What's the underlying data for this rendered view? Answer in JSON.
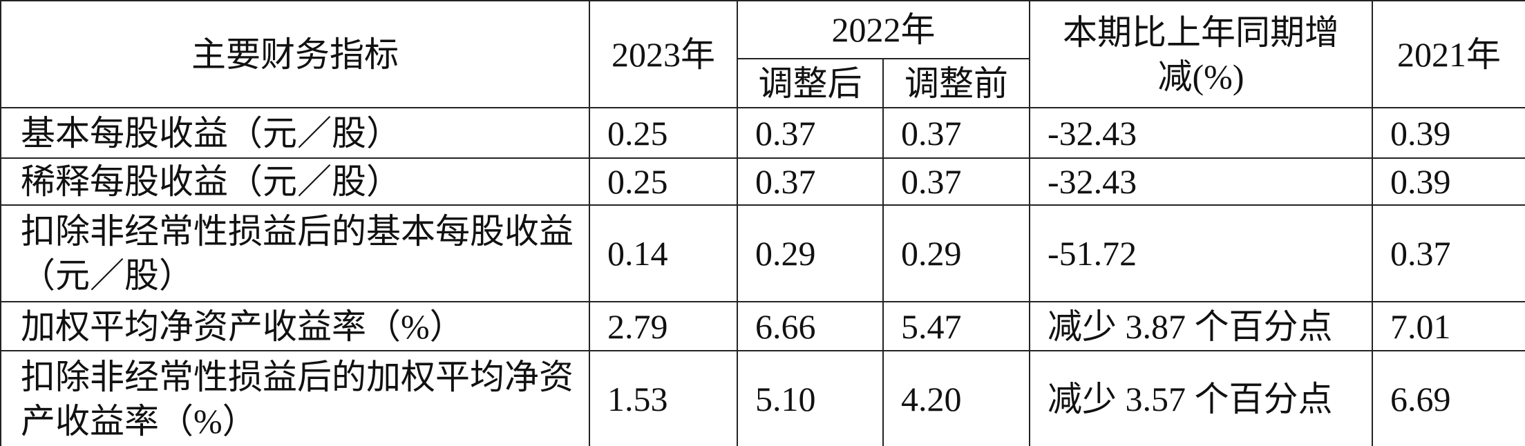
{
  "table": {
    "header": {
      "indicator": "主要财务指标",
      "y2023": "2023年",
      "y2022": "2022年",
      "adjusted": "调整后",
      "before_adjust": "调整前",
      "change": "本期比上年同期增减(%)",
      "y2021": "2021年"
    },
    "rows": [
      [
        "基本每股收益（元／股）",
        "0.25",
        "0.37",
        "0.37",
        "-32.43",
        "0.39"
      ],
      [
        "稀释每股收益（元／股）",
        "0.25",
        "0.37",
        "0.37",
        "-32.43",
        "0.39"
      ],
      [
        "扣除非经常性损益后的基本每股收益（元／股）",
        "0.14",
        "0.29",
        "0.29",
        "-51.72",
        "0.37"
      ],
      [
        "加权平均净资产收益率（%）",
        "2.79",
        "6.66",
        "5.47",
        "减少 3.87 个百分点",
        "7.01"
      ],
      [
        "扣除非经常性损益后的加权平均净资产收益率（%）",
        "1.53",
        "5.10",
        "4.20",
        "减少 3.57 个百分点",
        "6.69"
      ]
    ]
  }
}
